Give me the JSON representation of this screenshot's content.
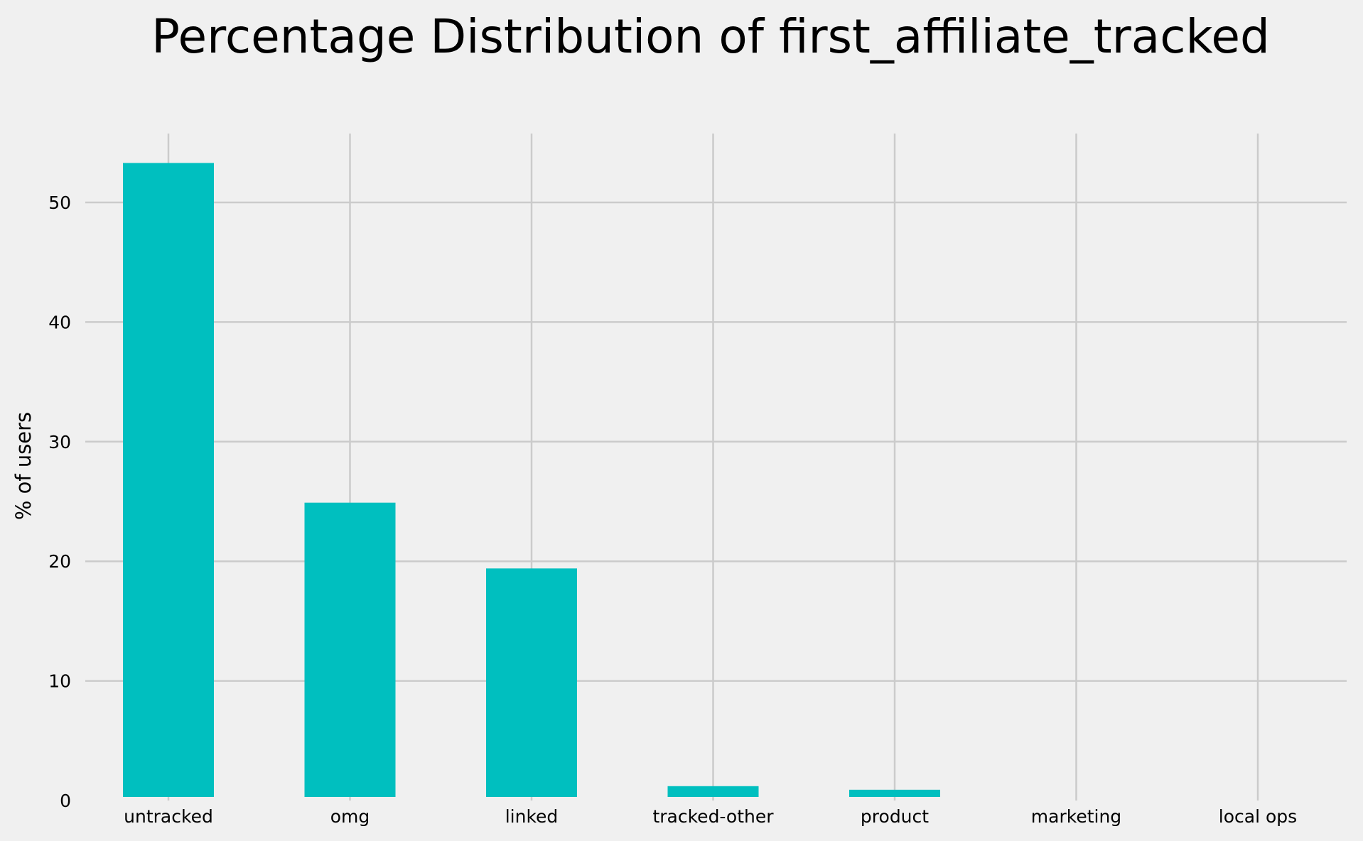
{
  "chart_data": {
    "type": "bar",
    "title": "Percentage Distribution of first_affiliate_tracked",
    "xlabel": "",
    "ylabel": "% of users",
    "categories": [
      "untracked",
      "omg",
      "linked",
      "tracked-other",
      "product",
      "marketing",
      "local ops"
    ],
    "values": [
      53.3,
      24.9,
      19.4,
      1.2,
      0.9,
      0.05,
      0.02
    ],
    "ylim": [
      0,
      56
    ],
    "yticks": [
      0,
      10,
      20,
      30,
      40,
      50
    ],
    "grid": true,
    "legend": false
  },
  "colors": {
    "bar": "#00bfbf",
    "background": "#f0f0f0",
    "grid": "#cbcbcb"
  }
}
